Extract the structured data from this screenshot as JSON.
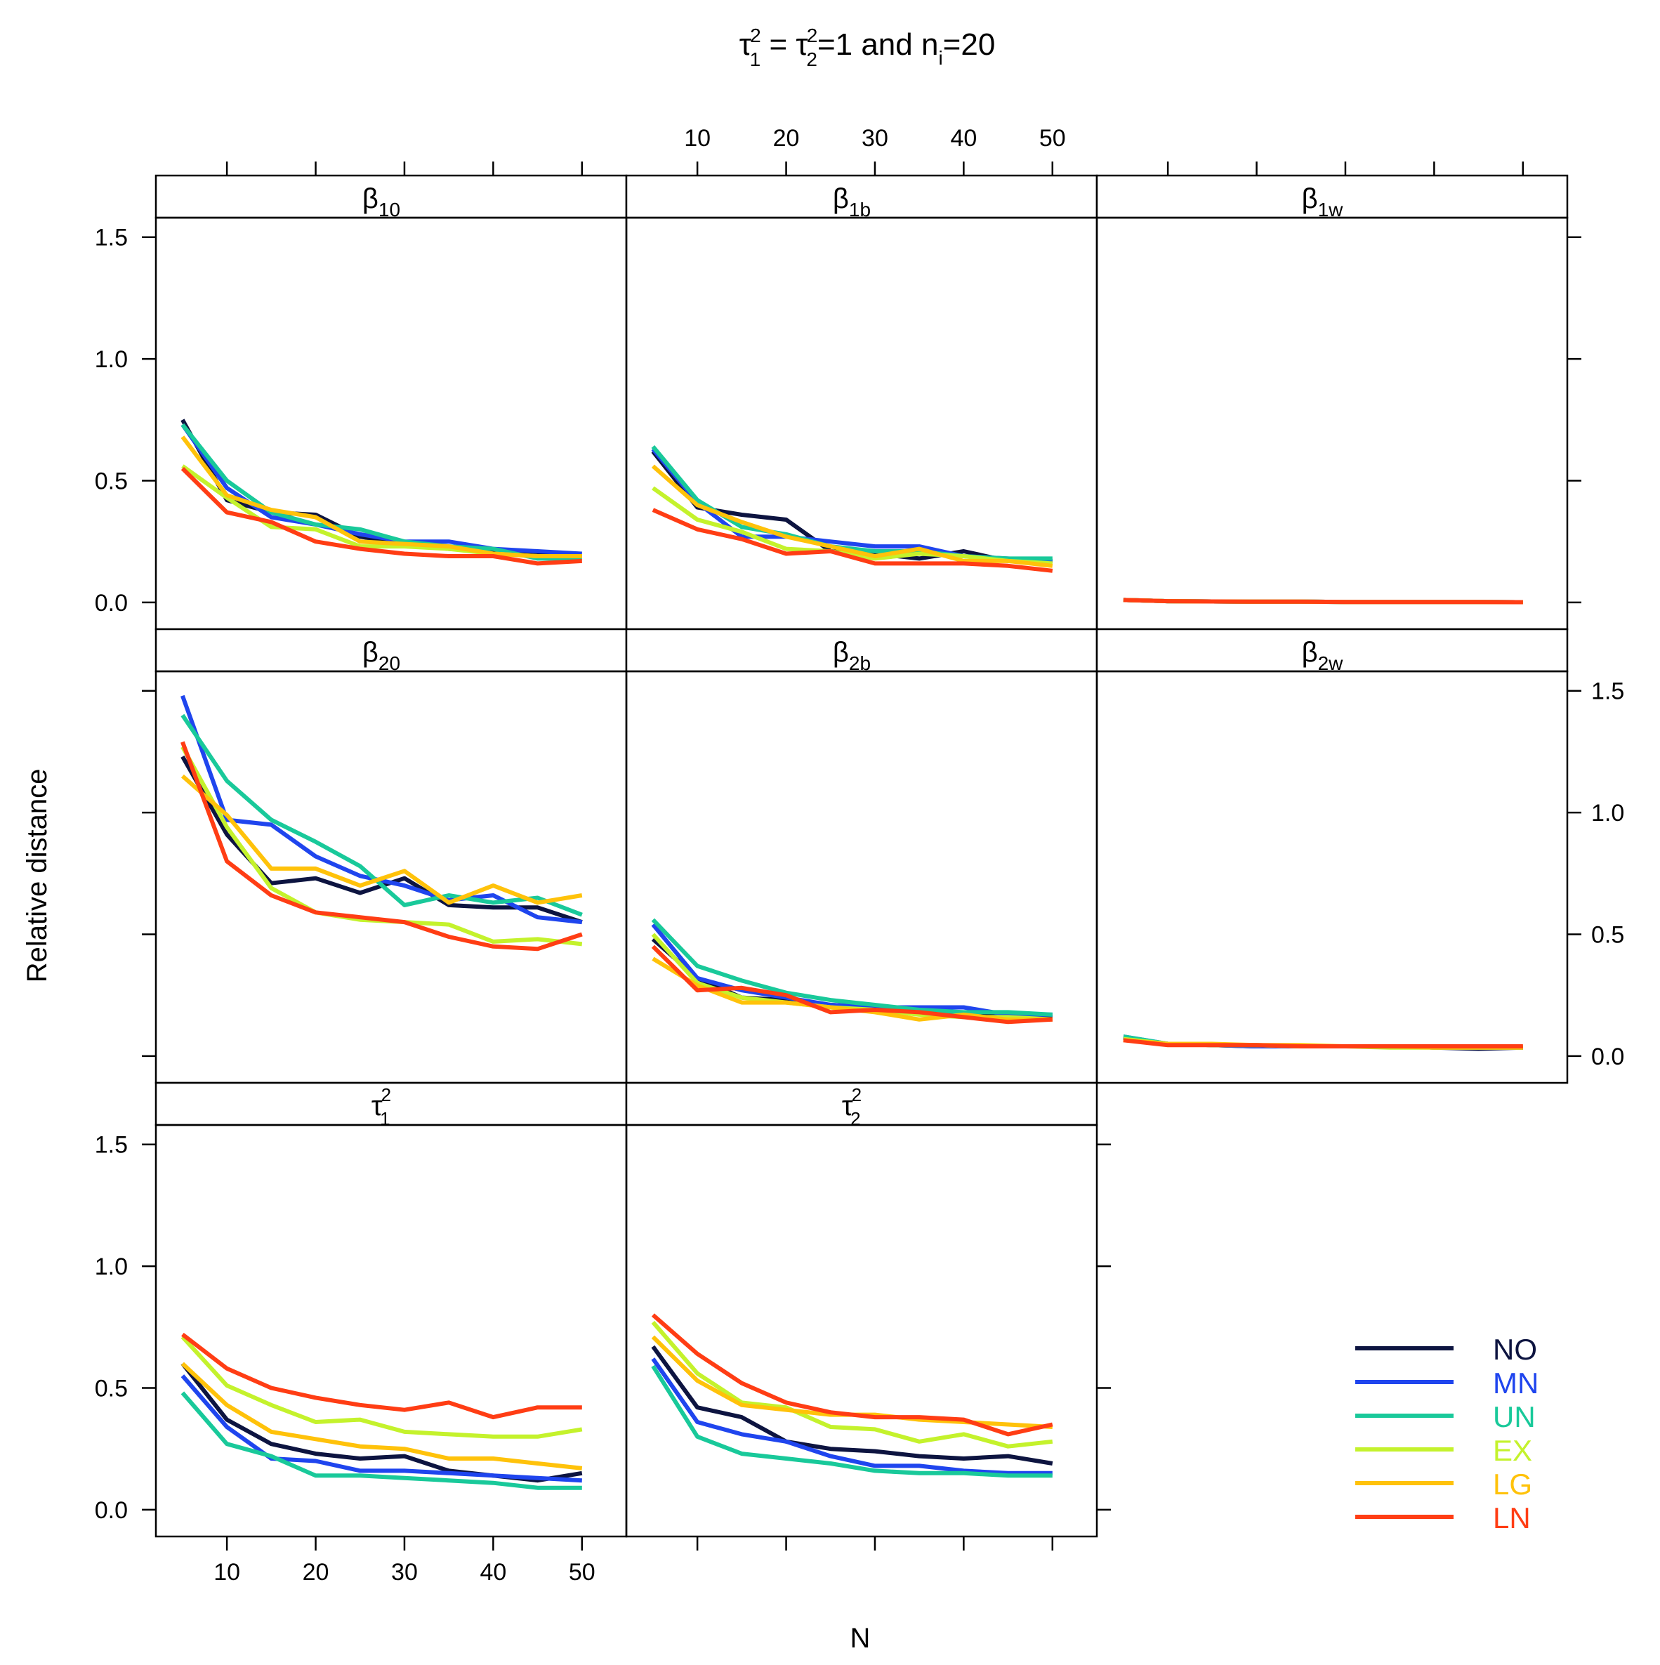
{
  "title": {
    "tau": "τ",
    "sup1": "2",
    "sub1": "1",
    "eq": " = ",
    "sup2": "2",
    "sub2": "2",
    "rest": "=1 and n",
    "sub_i": "i",
    "end": "=20"
  },
  "axes": {
    "xlabel": "N",
    "ylabel": "Relative distance",
    "x_ticks": [
      10,
      20,
      30,
      40,
      50
    ],
    "x_tick_labels": [
      "10",
      "20",
      "30",
      "40",
      "50"
    ],
    "y_ticks": [
      0,
      0.5,
      1,
      1.5
    ],
    "y_tick_labels": [
      "0.0",
      "0.5",
      "1.0",
      "1.5"
    ],
    "xlim": [
      2,
      55
    ],
    "ylim": [
      -0.11,
      1.58
    ]
  },
  "colors": {
    "NO": "#0d1440",
    "MN": "#1f45ee",
    "UN": "#19c99a",
    "EX": "#c4f22c",
    "LG": "#ffc20a",
    "LN": "#ff3d14"
  },
  "legend": {
    "placement": "bottom-right",
    "items": [
      "NO",
      "MN",
      "UN",
      "EX",
      "LG",
      "LN"
    ]
  },
  "chart_data": {
    "type": "line",
    "title": "τ1² = τ2²=1 and ni=20",
    "xlabel": "N",
    "ylabel": "Relative distance",
    "x": [
      5,
      10,
      15,
      20,
      25,
      30,
      35,
      40,
      45,
      50
    ],
    "layout": "3 rows x 3 columns, shared axes",
    "panels": [
      {
        "id": "b10",
        "strip": {
          "base": "β",
          "sub": "10",
          "sup": ""
        },
        "row": 0,
        "col": 0,
        "series": [
          {
            "name": "NO",
            "values": [
              0.75,
              0.42,
              0.37,
              0.36,
              0.27,
              0.24,
              0.22,
              0.21,
              0.2,
              0.19
            ]
          },
          {
            "name": "MN",
            "values": [
              0.73,
              0.47,
              0.35,
              0.32,
              0.28,
              0.25,
              0.25,
              0.22,
              0.21,
              0.2
            ]
          },
          {
            "name": "UN",
            "values": [
              0.73,
              0.5,
              0.37,
              0.32,
              0.3,
              0.25,
              0.23,
              0.22,
              0.18,
              0.18
            ]
          },
          {
            "name": "EX",
            "values": [
              0.56,
              0.43,
              0.31,
              0.3,
              0.23,
              0.23,
              0.22,
              0.2,
              0.19,
              0.19
            ]
          },
          {
            "name": "LG",
            "values": [
              0.68,
              0.44,
              0.38,
              0.35,
              0.25,
              0.24,
              0.23,
              0.2,
              0.19,
              0.19
            ]
          },
          {
            "name": "LN",
            "values": [
              0.55,
              0.37,
              0.33,
              0.25,
              0.22,
              0.2,
              0.19,
              0.19,
              0.16,
              0.17
            ]
          }
        ]
      },
      {
        "id": "b1b",
        "strip": {
          "base": "β",
          "sub": "1b",
          "sup": ""
        },
        "row": 0,
        "col": 1,
        "series": [
          {
            "name": "NO",
            "values": [
              0.62,
              0.39,
              0.36,
              0.34,
              0.21,
              0.2,
              0.18,
              0.21,
              0.17,
              0.17
            ]
          },
          {
            "name": "MN",
            "values": [
              0.63,
              0.41,
              0.27,
              0.27,
              0.25,
              0.23,
              0.23,
              0.19,
              0.18,
              0.17
            ]
          },
          {
            "name": "UN",
            "values": [
              0.64,
              0.42,
              0.31,
              0.28,
              0.23,
              0.21,
              0.21,
              0.19,
              0.18,
              0.18
            ]
          },
          {
            "name": "EX",
            "values": [
              0.47,
              0.34,
              0.29,
              0.22,
              0.21,
              0.18,
              0.2,
              0.19,
              0.17,
              0.16
            ]
          },
          {
            "name": "LG",
            "values": [
              0.56,
              0.4,
              0.33,
              0.27,
              0.23,
              0.19,
              0.22,
              0.17,
              0.17,
              0.15
            ]
          },
          {
            "name": "LN",
            "values": [
              0.38,
              0.3,
              0.26,
              0.2,
              0.21,
              0.16,
              0.16,
              0.16,
              0.15,
              0.13
            ]
          }
        ]
      },
      {
        "id": "b1w",
        "strip": {
          "base": "β",
          "sub": "1w",
          "sup": ""
        },
        "row": 0,
        "col": 2,
        "series": [
          {
            "name": "NO",
            "values": [
              0.01,
              0.005,
              0.004,
              0.003,
              0.003,
              0.002,
              0.002,
              0.002,
              0.002,
              0.001
            ]
          },
          {
            "name": "MN",
            "values": [
              0.01,
              0.005,
              0.004,
              0.003,
              0.003,
              0.002,
              0.002,
              0.002,
              0.002,
              0.001
            ]
          },
          {
            "name": "UN",
            "values": [
              0.01,
              0.005,
              0.004,
              0.003,
              0.003,
              0.002,
              0.002,
              0.002,
              0.002,
              0.001
            ]
          },
          {
            "name": "EX",
            "values": [
              0.01,
              0.005,
              0.004,
              0.003,
              0.003,
              0.002,
              0.002,
              0.002,
              0.002,
              0.001
            ]
          },
          {
            "name": "LG",
            "values": [
              0.01,
              0.005,
              0.004,
              0.003,
              0.003,
              0.002,
              0.002,
              0.002,
              0.002,
              0.001
            ]
          },
          {
            "name": "LN",
            "values": [
              0.01,
              0.005,
              0.004,
              0.003,
              0.003,
              0.002,
              0.002,
              0.002,
              0.002,
              0.001
            ]
          }
        ]
      },
      {
        "id": "b20",
        "strip": {
          "base": "β",
          "sub": "20",
          "sup": ""
        },
        "row": 1,
        "col": 0,
        "series": [
          {
            "name": "NO",
            "values": [
              1.23,
              0.91,
              0.71,
              0.73,
              0.67,
              0.73,
              0.62,
              0.61,
              0.61,
              0.55
            ]
          },
          {
            "name": "MN",
            "values": [
              1.48,
              0.97,
              0.95,
              0.82,
              0.74,
              0.7,
              0.64,
              0.66,
              0.57,
              0.55
            ]
          },
          {
            "name": "UN",
            "values": [
              1.4,
              1.13,
              0.97,
              0.88,
              0.78,
              0.62,
              0.66,
              0.63,
              0.65,
              0.58
            ]
          },
          {
            "name": "EX",
            "values": [
              1.27,
              0.94,
              0.69,
              0.59,
              0.56,
              0.55,
              0.54,
              0.47,
              0.48,
              0.46
            ]
          },
          {
            "name": "LG",
            "values": [
              1.15,
              0.99,
              0.77,
              0.77,
              0.7,
              0.76,
              0.63,
              0.7,
              0.63,
              0.66
            ]
          },
          {
            "name": "LN",
            "values": [
              1.29,
              0.8,
              0.66,
              0.59,
              0.57,
              0.55,
              0.49,
              0.45,
              0.44,
              0.5
            ]
          }
        ]
      },
      {
        "id": "b2b",
        "strip": {
          "base": "β",
          "sub": "2b",
          "sup": ""
        },
        "row": 1,
        "col": 1,
        "series": [
          {
            "name": "NO",
            "values": [
              0.48,
              0.32,
              0.24,
              0.23,
              0.21,
              0.2,
              0.2,
              0.17,
              0.16,
              0.16
            ]
          },
          {
            "name": "MN",
            "values": [
              0.54,
              0.32,
              0.27,
              0.24,
              0.21,
              0.2,
              0.2,
              0.2,
              0.17,
              0.17
            ]
          },
          {
            "name": "UN",
            "values": [
              0.56,
              0.37,
              0.31,
              0.26,
              0.23,
              0.21,
              0.19,
              0.18,
              0.18,
              0.17
            ]
          },
          {
            "name": "EX",
            "values": [
              0.5,
              0.3,
              0.24,
              0.22,
              0.2,
              0.19,
              0.17,
              0.16,
              0.16,
              0.15
            ]
          },
          {
            "name": "LG",
            "values": [
              0.4,
              0.29,
              0.22,
              0.22,
              0.2,
              0.18,
              0.15,
              0.17,
              0.15,
              0.15
            ]
          },
          {
            "name": "LN",
            "values": [
              0.45,
              0.27,
              0.28,
              0.25,
              0.18,
              0.19,
              0.18,
              0.16,
              0.14,
              0.15
            ]
          }
        ]
      },
      {
        "id": "b2w",
        "strip": {
          "base": "β",
          "sub": "2w",
          "sup": ""
        },
        "row": 1,
        "col": 2,
        "series": [
          {
            "name": "NO",
            "values": [
              0.075,
              0.05,
              0.045,
              0.04,
              0.04,
              0.04,
              0.04,
              0.035,
              0.03,
              0.035
            ]
          },
          {
            "name": "MN",
            "values": [
              0.08,
              0.05,
              0.045,
              0.04,
              0.04,
              0.04,
              0.04,
              0.035,
              0.035,
              0.035
            ]
          },
          {
            "name": "UN",
            "values": [
              0.08,
              0.05,
              0.045,
              0.045,
              0.04,
              0.04,
              0.04,
              0.035,
              0.035,
              0.035
            ]
          },
          {
            "name": "EX",
            "values": [
              0.07,
              0.05,
              0.045,
              0.045,
              0.04,
              0.04,
              0.035,
              0.035,
              0.035,
              0.035
            ]
          },
          {
            "name": "LG",
            "values": [
              0.065,
              0.05,
              0.05,
              0.045,
              0.045,
              0.04,
              0.04,
              0.035,
              0.035,
              0.035
            ]
          },
          {
            "name": "LN",
            "values": [
              0.065,
              0.045,
              0.045,
              0.045,
              0.04,
              0.04,
              0.04,
              0.04,
              0.04,
              0.04
            ]
          }
        ]
      },
      {
        "id": "tau1",
        "strip": {
          "base": "τ",
          "sub": "1",
          "sup": "2"
        },
        "row": 2,
        "col": 0,
        "series": [
          {
            "name": "NO",
            "values": [
              0.6,
              0.37,
              0.27,
              0.23,
              0.21,
              0.22,
              0.16,
              0.14,
              0.12,
              0.15
            ]
          },
          {
            "name": "MN",
            "values": [
              0.55,
              0.34,
              0.21,
              0.2,
              0.16,
              0.16,
              0.15,
              0.14,
              0.13,
              0.12
            ]
          },
          {
            "name": "UN",
            "values": [
              0.48,
              0.27,
              0.22,
              0.14,
              0.14,
              0.13,
              0.12,
              0.11,
              0.09,
              0.09
            ]
          },
          {
            "name": "EX",
            "values": [
              0.71,
              0.51,
              0.43,
              0.36,
              0.37,
              0.32,
              0.31,
              0.3,
              0.3,
              0.33
            ]
          },
          {
            "name": "LG",
            "values": [
              0.6,
              0.43,
              0.32,
              0.29,
              0.26,
              0.25,
              0.21,
              0.21,
              0.19,
              0.17
            ]
          },
          {
            "name": "LN",
            "values": [
              0.72,
              0.58,
              0.5,
              0.46,
              0.43,
              0.41,
              0.44,
              0.38,
              0.42,
              0.42
            ]
          }
        ]
      },
      {
        "id": "tau2",
        "strip": {
          "base": "τ",
          "sub": "2",
          "sup": "2"
        },
        "row": 2,
        "col": 1,
        "series": [
          {
            "name": "NO",
            "values": [
              0.67,
              0.42,
              0.38,
              0.28,
              0.25,
              0.24,
              0.22,
              0.21,
              0.22,
              0.19
            ]
          },
          {
            "name": "MN",
            "values": [
              0.62,
              0.36,
              0.31,
              0.28,
              0.22,
              0.18,
              0.18,
              0.16,
              0.15,
              0.15
            ]
          },
          {
            "name": "UN",
            "values": [
              0.59,
              0.3,
              0.23,
              0.21,
              0.19,
              0.16,
              0.15,
              0.15,
              0.14,
              0.14
            ]
          },
          {
            "name": "EX",
            "values": [
              0.77,
              0.56,
              0.44,
              0.42,
              0.34,
              0.33,
              0.28,
              0.31,
              0.26,
              0.28
            ]
          },
          {
            "name": "LG",
            "values": [
              0.71,
              0.53,
              0.43,
              0.41,
              0.39,
              0.39,
              0.37,
              0.36,
              0.35,
              0.34
            ]
          },
          {
            "name": "LN",
            "values": [
              0.8,
              0.64,
              0.52,
              0.44,
              0.4,
              0.38,
              0.38,
              0.37,
              0.31,
              0.35
            ]
          }
        ]
      }
    ]
  }
}
